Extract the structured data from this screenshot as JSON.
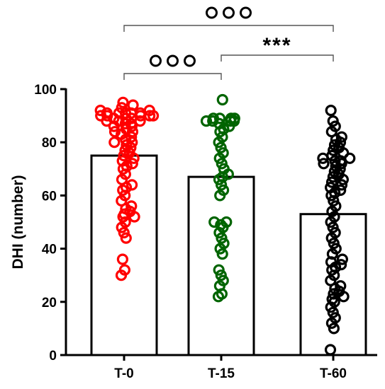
{
  "chart_data": {
    "type": "bar",
    "title": "",
    "xlabel": "",
    "ylabel": "DHI (number)",
    "ylim": [
      0,
      100
    ],
    "yticks": [
      0,
      20,
      40,
      60,
      80,
      100
    ],
    "categories": [
      "T-0",
      "T-15",
      "T-60"
    ],
    "values": [
      75,
      67,
      53
    ],
    "colors": [
      "#ff0000",
      "#006400",
      "#000000"
    ],
    "points": [
      [
        30,
        32,
        36,
        44,
        46,
        48,
        50,
        52,
        52,
        53,
        54,
        55,
        56,
        58,
        60,
        62,
        63,
        64,
        66,
        68,
        70,
        71,
        72,
        73,
        74,
        75,
        76,
        77,
        78,
        79,
        80,
        80,
        81,
        82,
        83,
        84,
        84,
        85,
        86,
        86,
        87,
        87,
        88,
        88,
        88,
        89,
        89,
        89,
        90,
        90,
        90,
        90,
        90,
        91,
        91,
        91,
        91,
        91,
        92,
        92,
        93,
        94,
        95
      ],
      [
        22,
        23,
        26,
        28,
        30,
        32,
        38,
        40,
        42,
        44,
        46,
        48,
        49,
        50,
        50,
        60,
        62,
        64,
        66,
        67,
        68,
        70,
        72,
        74,
        76,
        78,
        80,
        82,
        84,
        85,
        86,
        87,
        88,
        88,
        88,
        88,
        89,
        89,
        89,
        89,
        96
      ],
      [
        2,
        10,
        12,
        14,
        16,
        18,
        20,
        21,
        22,
        23,
        24,
        25,
        26,
        28,
        30,
        32,
        33,
        34,
        35,
        36,
        38,
        40,
        42,
        44,
        46,
        48,
        50,
        52,
        54,
        56,
        58,
        60,
        61,
        62,
        63,
        64,
        65,
        66,
        67,
        68,
        69,
        70,
        71,
        72,
        72,
        73,
        73,
        74,
        74,
        75,
        76,
        77,
        78,
        79,
        80,
        81,
        82,
        84,
        86,
        88,
        92
      ]
    ],
    "annotations": [
      {
        "from": "T-0",
        "to": "T-60",
        "label": "ooo"
      },
      {
        "from": "T-0",
        "to": "T-15",
        "label": "ooo"
      },
      {
        "from": "T-15",
        "to": "T-60",
        "label": "***"
      }
    ],
    "grid": false,
    "legend": "none"
  }
}
